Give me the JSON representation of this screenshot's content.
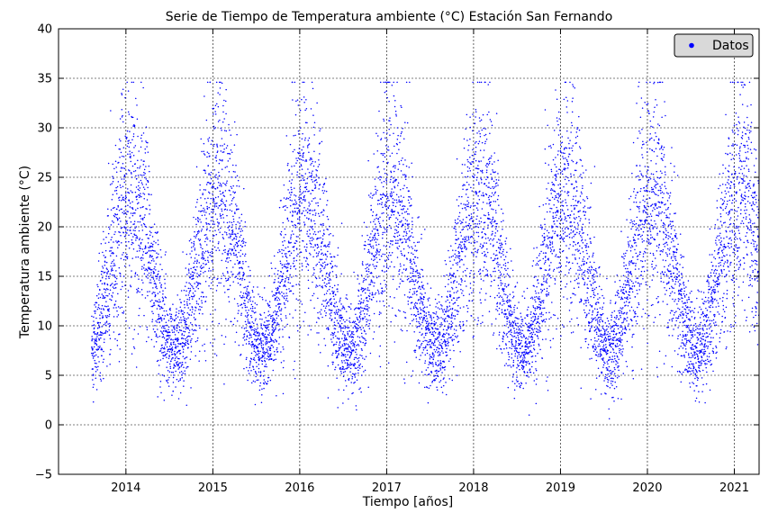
{
  "chart_data": {
    "type": "scatter",
    "title": "Serie de Tiempo de Temperatura ambiente (°C) Estación San Fernando",
    "xlabel": "Tiempo [años]",
    "ylabel": "Temperatura ambiente (°C)",
    "xlim": [
      "2013-03-24",
      "2021-04-15"
    ],
    "ylim": [
      -5,
      40
    ],
    "x_ticks": [
      {
        "label": "2014",
        "date": "2014-01-01"
      },
      {
        "label": "2015",
        "date": "2015-01-01"
      },
      {
        "label": "2016",
        "date": "2016-01-01"
      },
      {
        "label": "2017",
        "date": "2017-01-01"
      },
      {
        "label": "2018",
        "date": "2018-01-01"
      },
      {
        "label": "2019",
        "date": "2019-01-01"
      },
      {
        "label": "2020",
        "date": "2020-01-01"
      },
      {
        "label": "2021",
        "date": "2021-01-01"
      }
    ],
    "y_ticks": [
      -5,
      0,
      5,
      10,
      15,
      20,
      25,
      30,
      35,
      40
    ],
    "grid": true,
    "grid_style": "dashed",
    "legend": {
      "position": "top-right",
      "entries": [
        "Datos"
      ]
    },
    "series": [
      {
        "name": "Datos",
        "color": "#0000ff",
        "marker": "dot",
        "x_range": [
          "2013-08-10",
          "2021-04-15"
        ],
        "approx_seasonal_envelope": [
          {
            "period": "summer 2014 (Jan)",
            "min": 7,
            "max": 34.5
          },
          {
            "period": "winter 2014 (Jul)",
            "min": -1,
            "max": 22
          },
          {
            "period": "summer 2015 (Jan)",
            "min": 8,
            "max": 34
          },
          {
            "period": "winter 2015 (Jul)",
            "min": -1.8,
            "max": 24
          },
          {
            "period": "summer 2016 (Jan)",
            "min": 8,
            "max": 33
          },
          {
            "period": "winter 2016 (Jul)",
            "min": -0.5,
            "max": 24
          },
          {
            "period": "summer 2017 (Jan)",
            "min": 8,
            "max": 34.3
          },
          {
            "period": "winter 2017 (Jul)",
            "min": -2.2,
            "max": 22
          },
          {
            "period": "summer 2018 (Jan)",
            "min": 8,
            "max": 32
          },
          {
            "period": "winter 2018 (Jul)",
            "min": -2.5,
            "max": 22
          },
          {
            "period": "summer 2019 (Jan)",
            "min": 8,
            "max": 34
          },
          {
            "period": "winter 2019 (Jul)",
            "min": -2,
            "max": 23
          },
          {
            "period": "summer 2020 (Jan)",
            "min": 8,
            "max": 34.5
          },
          {
            "period": "winter 2020 (Jul)",
            "min": 0,
            "max": 23
          },
          {
            "period": "summer 2021 (Jan)",
            "min": 7,
            "max": 32
          }
        ]
      }
    ]
  }
}
